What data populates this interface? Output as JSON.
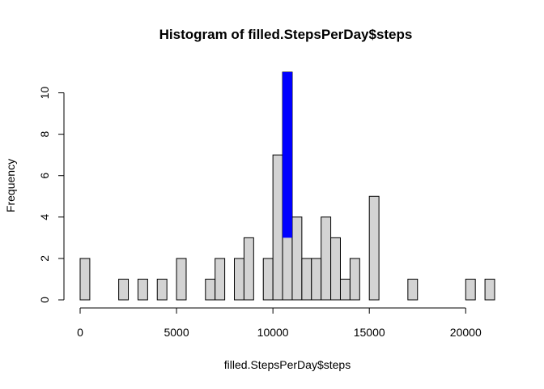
{
  "chart_data": {
    "type": "bar",
    "title": "Histogram of filled.StepsPerDay$steps",
    "xlabel": "filled.StepsPerDay$steps",
    "ylabel": "Frequency",
    "xlim": [
      0,
      21500
    ],
    "ylim": [
      0,
      11
    ],
    "x_ticks": [
      0,
      5000,
      10000,
      15000,
      20000
    ],
    "y_ticks": [
      0,
      2,
      4,
      6,
      8,
      10
    ],
    "bin_width": 500,
    "bins_start": 0,
    "counts": [
      2,
      0,
      0,
      0,
      1,
      0,
      1,
      0,
      1,
      0,
      2,
      0,
      0,
      1,
      2,
      0,
      2,
      3,
      0,
      2,
      7,
      11,
      4,
      2,
      2,
      4,
      3,
      1,
      2,
      0,
      5,
      0,
      0,
      0,
      1,
      0,
      0,
      0,
      0,
      0,
      1,
      0,
      1
    ],
    "highlight": {
      "bin_start": 10500,
      "bin_end": 11000,
      "from": 3,
      "to": 11,
      "color": "#0000ff"
    },
    "bar_color": "#d3d3d3",
    "grid": false
  }
}
